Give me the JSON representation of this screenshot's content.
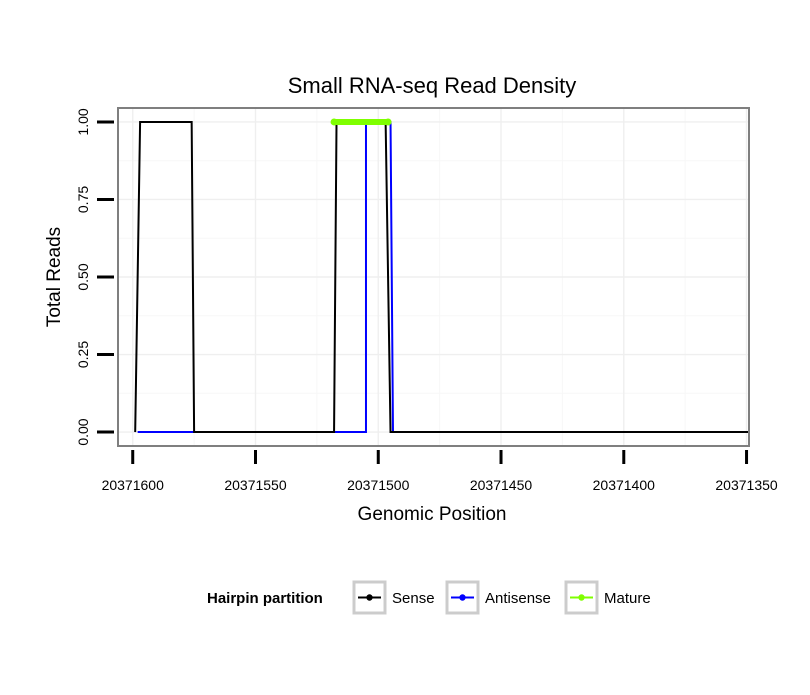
{
  "chart_data": {
    "type": "line",
    "title": "Small RNA-seq Read Density",
    "xlabel": "Genomic Position",
    "ylabel": "Total Reads",
    "x_reversed": true,
    "xlim": [
      20371606,
      20371349
    ],
    "ylim": [
      -0.045,
      1.045
    ],
    "x_ticks": [
      {
        "value": 20371600,
        "label": "20371600"
      },
      {
        "value": 20371550,
        "label": "20371550"
      },
      {
        "value": 20371500,
        "label": "20371500"
      },
      {
        "value": 20371450,
        "label": "20371450"
      },
      {
        "value": 20371400,
        "label": "20371400"
      },
      {
        "value": 20371350,
        "label": "20371350"
      }
    ],
    "y_ticks": [
      {
        "value": 0,
        "label": "0.00"
      },
      {
        "value": 0.25,
        "label": "0.25"
      },
      {
        "value": 0.5,
        "label": "0.50"
      },
      {
        "value": 0.75,
        "label": "0.75"
      },
      {
        "value": 1,
        "label": "1.00"
      }
    ],
    "grid": true,
    "series": [
      {
        "name": "Antisense",
        "color": "#0000ff",
        "points": [
          {
            "x": 20371598,
            "y": 0
          },
          {
            "x": 20371505,
            "y": 0
          },
          {
            "x": 20371505,
            "y": 1
          },
          {
            "x": 20371495,
            "y": 1
          },
          {
            "x": 20371494,
            "y": 0
          },
          {
            "x": 20371348,
            "y": 0
          }
        ]
      },
      {
        "name": "Sense",
        "color": "#000000",
        "points": [
          {
            "x": 20371599,
            "y": 0
          },
          {
            "x": 20371597,
            "y": 1
          },
          {
            "x": 20371576,
            "y": 1
          },
          {
            "x": 20371575,
            "y": 0
          },
          {
            "x": 20371518,
            "y": 0
          },
          {
            "x": 20371517,
            "y": 1
          },
          {
            "x": 20371497,
            "y": 1
          },
          {
            "x": 20371495,
            "y": 0
          },
          {
            "x": 20371348,
            "y": 0
          }
        ]
      },
      {
        "name": "Mature",
        "color": "#7fff00",
        "points": [
          {
            "x": 20371518,
            "y": 1
          },
          {
            "x": 20371496,
            "y": 1
          }
        ]
      }
    ],
    "legend": {
      "title": "Hairpin partition",
      "position": "bottom",
      "entries": [
        {
          "name": "Sense",
          "color": "#000000"
        },
        {
          "name": "Antisense",
          "color": "#0000ff"
        },
        {
          "name": "Mature",
          "color": "#7fff00"
        }
      ]
    }
  }
}
